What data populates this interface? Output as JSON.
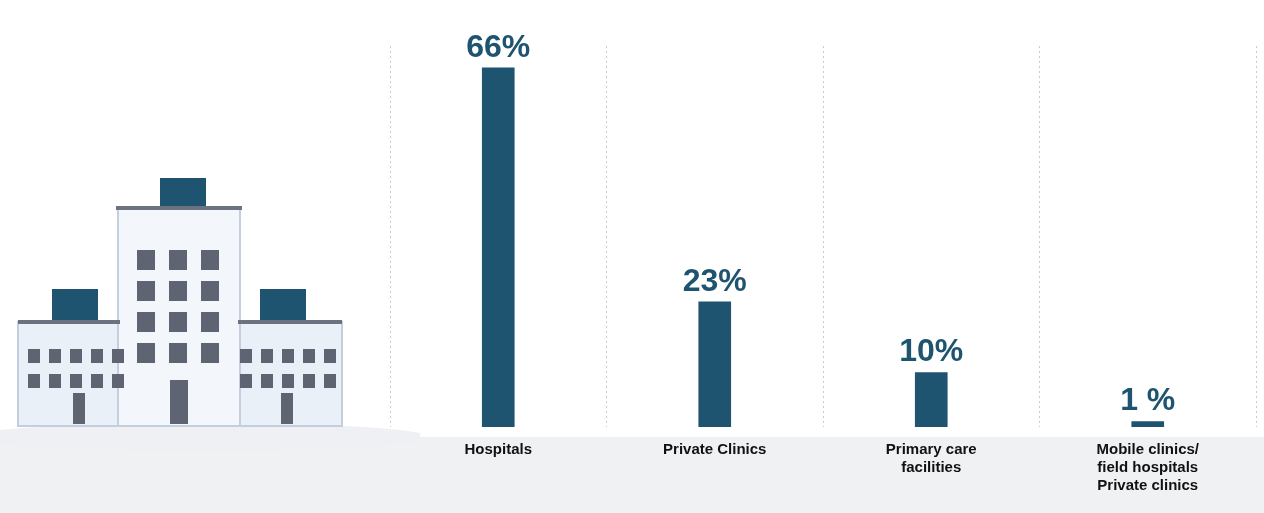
{
  "chart_data": {
    "type": "bar",
    "categories": [
      "Hospitals",
      "Private Clinics",
      "Primary care facilities",
      "Mobile clinics/ field hospitals Private clinics"
    ],
    "values": [
      66,
      23,
      10,
      1
    ],
    "value_labels": [
      "66%",
      "23%",
      "10%",
      "1 %"
    ],
    "color": "#1f5470",
    "data_labels": true,
    "tick_labels": "x",
    "grid": true
  }
}
